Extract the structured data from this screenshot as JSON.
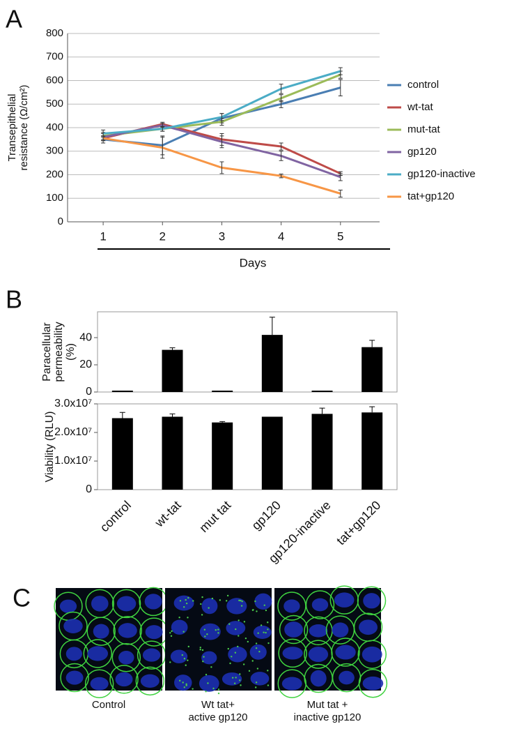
{
  "chart_data": [
    {
      "type": "line",
      "label": "A",
      "xlabel": "Days",
      "ylabel": "Transepithelial resistance (Ω/cm²)",
      "x": [
        1,
        2,
        3,
        4,
        5
      ],
      "xlim": [
        0.4,
        5.66
      ],
      "xticks": [
        1,
        2,
        3,
        4,
        5
      ],
      "ylim": [
        0,
        800
      ],
      "yticks": [
        0,
        100,
        200,
        300,
        400,
        500,
        600,
        700,
        800
      ],
      "grid": true,
      "legend": "right",
      "series": [
        {
          "name": "control",
          "color": "#4a7eb3",
          "values": [
            350,
            325,
            440,
            500,
            570
          ],
          "errors": [
            15,
            40,
            20,
            15,
            35
          ]
        },
        {
          "name": "wt-tat",
          "color": "#be4b48",
          "values": [
            355,
            415,
            350,
            320,
            205
          ],
          "errors": [
            10,
            8,
            25,
            15,
            8
          ]
        },
        {
          "name": "mut-tat",
          "color": "#9bbb59",
          "values": [
            365,
            395,
            425,
            525,
            625
          ],
          "errors": [
            15,
            10,
            15,
            15,
            15
          ]
        },
        {
          "name": "gp120",
          "color": "#8064a2",
          "values": [
            360,
            410,
            340,
            280,
            190
          ],
          "errors": [
            15,
            8,
            25,
            20,
            15
          ]
        },
        {
          "name": "gp120-inactive",
          "color": "#4bacc6",
          "values": [
            375,
            395,
            445,
            565,
            640
          ],
          "errors": [
            15,
            10,
            15,
            20,
            15
          ]
        },
        {
          "name": "tat+gp120",
          "color": "#f79646",
          "values": [
            355,
            315,
            230,
            195,
            120
          ],
          "errors": [
            10,
            45,
            25,
            8,
            15
          ]
        }
      ]
    },
    {
      "type": "bar",
      "label": "B",
      "ylabel": "Paracellular permeability (%)",
      "color": "#000000",
      "values": [
        1,
        31,
        1,
        42,
        1,
        33
      ],
      "errors": [
        0,
        1.5,
        0,
        13,
        0,
        5
      ],
      "ylim": [
        0,
        59
      ],
      "yticks": [
        0,
        20,
        40
      ]
    },
    {
      "type": "bar",
      "ylabel": "Viability (RLU)",
      "color": "#000000",
      "categories": [
        "control",
        "wt-tat",
        "mut tat",
        "gp120",
        "gp120-inactive",
        "tat+gp120"
      ],
      "values": [
        25000000,
        25500000,
        23500000,
        25500000,
        26500000,
        27000000
      ],
      "errors": [
        2000000,
        1000000,
        300000,
        0,
        2000000,
        2000000
      ],
      "ylim": [
        0,
        30000000
      ],
      "yticks": [
        0,
        {
          "value": 10000000,
          "label": "1.0x10⁷"
        },
        {
          "value": 20000000,
          "label": "2.0x10⁷"
        },
        {
          "value": 30000000,
          "label": "3.0x10⁷"
        }
      ]
    }
  ],
  "panel_c": {
    "label": "C",
    "captions": [
      [
        "Control"
      ],
      [
        "Wt tat+",
        "active gp120"
      ],
      [
        "Mut tat +",
        "inactive gp120"
      ]
    ]
  }
}
